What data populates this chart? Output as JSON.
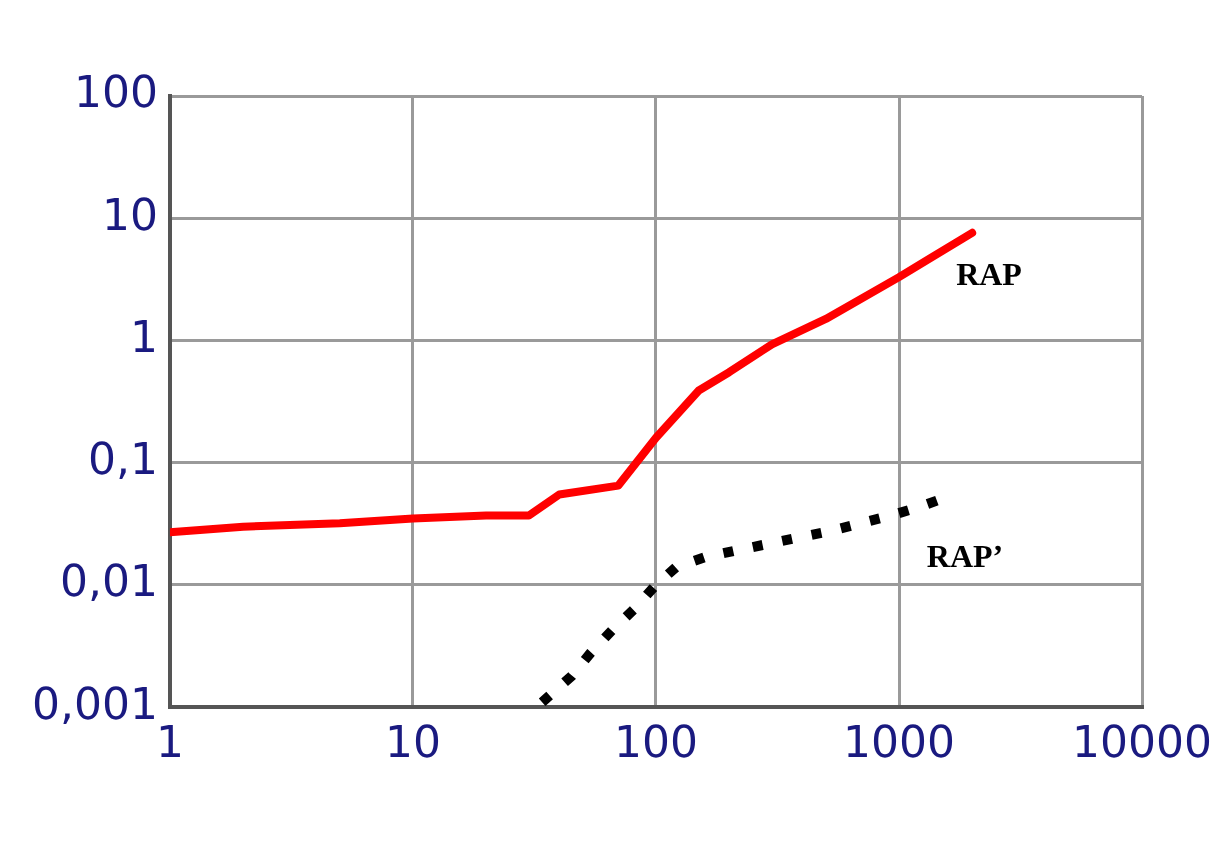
{
  "chart_data": {
    "type": "line",
    "log": "xy",
    "grid": true,
    "legend": false,
    "marker": "none",
    "xlim": [
      1,
      10000
    ],
    "xticks": [
      1,
      10,
      100,
      1000,
      10000
    ],
    "ylim": [
      0.001,
      100
    ],
    "yticks": [
      {
        "value": 0.001,
        "label": "0,001"
      },
      {
        "value": 0.01,
        "label": "0,01"
      },
      {
        "value": 0.1,
        "label": "0,1"
      },
      1,
      10,
      100
    ],
    "series": [
      {
        "name": "RAP",
        "color": "#ff0000",
        "line_style": "solid",
        "x": [
          1,
          2,
          5,
          10,
          20,
          30,
          40,
          70,
          100,
          150,
          200,
          300,
          500,
          1000,
          2000
        ],
        "values": [
          0.027,
          0.03,
          0.032,
          0.035,
          0.037,
          0.037,
          0.055,
          0.065,
          0.16,
          0.39,
          0.55,
          0.93,
          1.5,
          3.3,
          7.6
        ]
      },
      {
        "name": "RAP’",
        "color": "#000000",
        "line_style": "dotted",
        "x": [
          34,
          45,
          54,
          67,
          81,
          98,
          121,
          161,
          218,
          290,
          386,
          514,
          697,
          927,
          1233,
          1514
        ],
        "values": [
          0.0011,
          0.0018,
          0.0028,
          0.0044,
          0.0063,
          0.0096,
          0.014,
          0.017,
          0.0193,
          0.0217,
          0.0244,
          0.0274,
          0.032,
          0.037,
          0.044,
          0.051
        ]
      }
    ]
  }
}
